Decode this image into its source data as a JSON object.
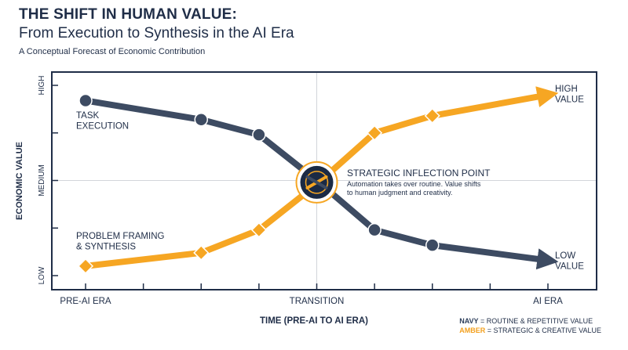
{
  "header": {
    "title": "THE SHIFT IN HUMAN VALUE:",
    "subtitle": "From Execution to Synthesis in the AI Era",
    "caption": "A Conceptual Forecast of Economic Contribution"
  },
  "colors": {
    "navy": "#3d4b62",
    "amber": "#f6a623",
    "axis": "#1f2d47",
    "grid": "#d2d5da"
  },
  "chart_data": {
    "type": "line",
    "xlabel": "TIME (PRE-AI TO AI ERA)",
    "ylabel": "ECONOMIC VALUE",
    "x_ticks": [
      "PRE-AI ERA",
      "TRANSITION",
      "AI ERA"
    ],
    "y_ticks": [
      "LOW",
      "MEDIUM",
      "HIGH"
    ],
    "xlim": [
      0,
      8
    ],
    "ylim": [
      0,
      1
    ],
    "series": [
      {
        "color": "navy",
        "marker": "circle",
        "x": [
          0,
          2,
          3,
          4,
          5,
          6,
          8
        ],
        "y": [
          0.92,
          0.82,
          0.74,
          0.5,
          0.24,
          0.16,
          0.08
        ]
      },
      {
        "color": "amber",
        "marker": "diamond",
        "x": [
          0,
          2,
          3,
          4,
          5,
          6,
          8
        ],
        "y": [
          0.05,
          0.12,
          0.24,
          0.48,
          0.75,
          0.84,
          0.95
        ]
      }
    ],
    "annotations": {
      "navy_start": [
        "TASK",
        "EXECUTION"
      ],
      "amber_start": [
        "PROBLEM FRAMING",
        "& SYNTHESIS"
      ],
      "amber_end": [
        "HIGH",
        "VALUE"
      ],
      "navy_end": [
        "LOW",
        "VALUE"
      ],
      "inflection_title": "STRATEGIC INFLECTION POINT",
      "inflection_text": [
        "Automation takes over routine. Value shifts",
        "to human judgment and creativity."
      ]
    },
    "legend": {
      "navy_key": "NAVY",
      "navy_text": " = ROUTINE & REPETITIVE VALUE",
      "amber_key": "AMBER",
      "amber_text": " = STRATEGIC & CREATIVE VALUE"
    },
    "grid": true
  }
}
